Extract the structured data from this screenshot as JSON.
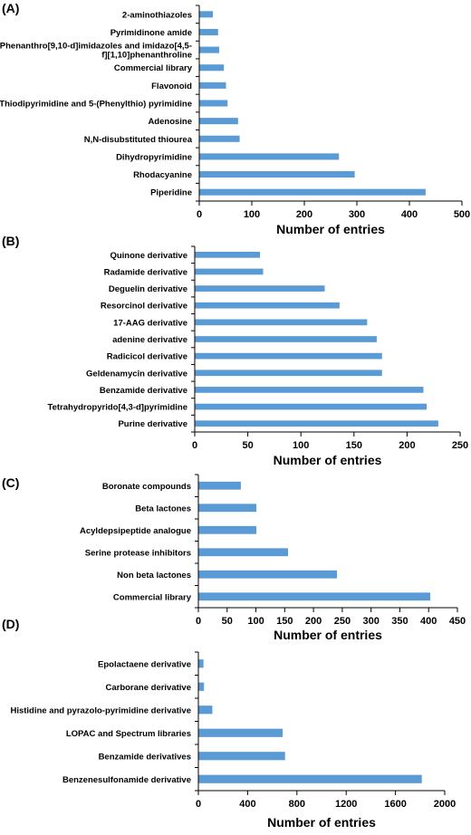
{
  "chart_data": [
    {
      "type": "bar",
      "orientation": "horizontal",
      "panel_label": "(A)",
      "xlabel": "Number of entries",
      "xlim": [
        0,
        500
      ],
      "xticks": [
        "0",
        "100",
        "200",
        "300",
        "400",
        "500"
      ],
      "categories": [
        "2-aminothiazoles",
        "Pyrimidinone amide",
        "Phenanthro[9,10-d]imidazoles and imidazo[4,5-f][1,10]phenanthroline",
        "Commercial library",
        "Flavonoid",
        "Thiodipyrimidine and 5-(Phenylthio) pyrimidine",
        "Adenosine",
        "N,N-disubstituted thiourea",
        "Dihydropyrimidine",
        "Rhodacyanine",
        "Piperidine"
      ],
      "category_lines": [
        [
          "2-aminothiazoles"
        ],
        [
          "Pyrimidinone amide"
        ],
        [
          "Phenanthro[9,10-d]imidazoles and imidazo[4,5-",
          "f][1,10]phenanthroline"
        ],
        [
          "Commercial library"
        ],
        [
          "Flavonoid"
        ],
        [
          "Thiodipyrimidine and 5-(Phenylthio) pyrimidine"
        ],
        [
          "Adenosine"
        ],
        [
          "N,N-disubstituted thiourea"
        ],
        [
          "Dihydropyrimidine"
        ],
        [
          "Rhodacyanine"
        ],
        [
          "Piperidine"
        ]
      ],
      "values": [
        25,
        35,
        37,
        46,
        50,
        53,
        73,
        76,
        265,
        295,
        430
      ],
      "bar_color": "#5b9bd5"
    },
    {
      "type": "bar",
      "orientation": "horizontal",
      "panel_label": "(B)",
      "xlabel": "Number of entries",
      "xlim": [
        0,
        250
      ],
      "xticks": [
        "0",
        "50",
        "100",
        "150",
        "200",
        "250"
      ],
      "categories": [
        "Quinone derivative",
        "Radamide derivative",
        "Deguelin derivative",
        "Resorcinol derivative",
        "17-AAG derivative",
        "adenine derivative",
        "Radicicol derivative",
        "Geldenamycin derivative",
        "Benzamide derivative",
        "Tetrahydropyrido[4,3-d]pyrimidine",
        "Purine derivative"
      ],
      "category_lines": [
        [
          "Quinone derivative"
        ],
        [
          "Radamide derivative"
        ],
        [
          "Deguelin derivative"
        ],
        [
          "Resorcinol derivative"
        ],
        [
          "17-AAG derivative"
        ],
        [
          "adenine derivative"
        ],
        [
          "Radicicol derivative"
        ],
        [
          "Geldenamycin derivative"
        ],
        [
          "Benzamide derivative"
        ],
        [
          "Tetrahydropyrido[4,3-d]pyrimidine"
        ],
        [
          "Purine derivative"
        ]
      ],
      "values": [
        61,
        64,
        122,
        136,
        162,
        171,
        176,
        176,
        215,
        218,
        229
      ],
      "bar_color": "#5b9bd5"
    },
    {
      "type": "bar",
      "orientation": "horizontal",
      "panel_label": "(C)",
      "xlabel": "Number of entries",
      "xlim": [
        0,
        450
      ],
      "xticks": [
        "0",
        "50",
        "100",
        "150",
        "200",
        "250",
        "300",
        "350",
        "400",
        "450"
      ],
      "categories": [
        "Boronate compounds",
        "Beta lactones",
        "Acyldepsipeptide analogue",
        "Serine protease inhibitors",
        "Non beta lactones",
        "Commercial library"
      ],
      "category_lines": [
        [
          "Boronate compounds"
        ],
        [
          "Beta lactones"
        ],
        [
          "Acyldepsipeptide analogue"
        ],
        [
          "Serine protease inhibitors"
        ],
        [
          "Non beta lactones"
        ],
        [
          "Commercial library"
        ]
      ],
      "values": [
        73,
        100,
        100,
        155,
        240,
        402
      ],
      "bar_color": "#5b9bd5"
    },
    {
      "type": "bar",
      "orientation": "horizontal",
      "panel_label": "(D)",
      "xlabel": "Number of entries",
      "xlim": [
        0,
        2000
      ],
      "xtick_step": 400,
      "xticks": [
        "0",
        "400",
        "800",
        "1200",
        "1600",
        "2000"
      ],
      "categories": [
        "Epolactaene derivative",
        "Carborane derivative",
        "Histidine and pyrazolo-pyrimidine derivative",
        "LOPAC and Spectrum libraries",
        "Benzamide derivatives",
        "Benzenesulfonamide derivative"
      ],
      "category_lines": [
        [
          "Epolactaene derivative"
        ],
        [
          "Carborane derivative"
        ],
        [
          "Histidine and pyrazolo-pyrimidine derivative"
        ],
        [
          "LOPAC and Spectrum libraries"
        ],
        [
          "Benzamide derivatives"
        ],
        [
          "Benzenesulfonamide derivative"
        ]
      ],
      "values": [
        38,
        42,
        110,
        680,
        700,
        1810
      ],
      "bar_color": "#5b9bd5"
    }
  ]
}
